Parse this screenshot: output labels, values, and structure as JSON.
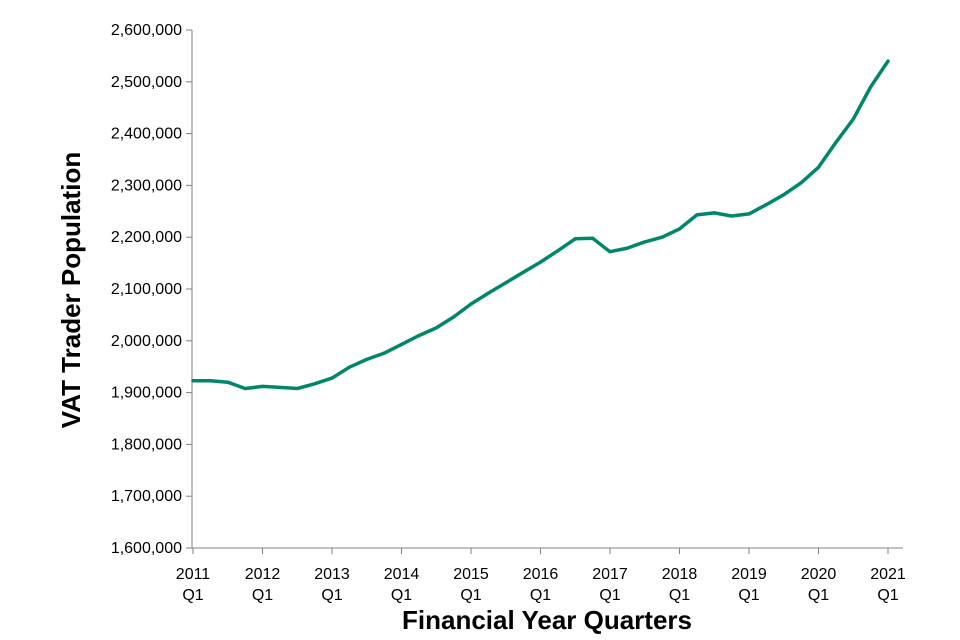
{
  "chart_data": {
    "type": "line",
    "title": "",
    "xlabel": "Financial Year Quarters",
    "ylabel": "VAT Trader Population",
    "ylim": [
      1600000,
      2600000
    ],
    "y_ticks": [
      1600000,
      1700000,
      1800000,
      1900000,
      2000000,
      2100000,
      2200000,
      2300000,
      2400000,
      2500000,
      2600000
    ],
    "y_tick_labels": [
      "1,600,000",
      "1,700,000",
      "1,800,000",
      "1,900,000",
      "2,000,000",
      "2,100,000",
      "2,200,000",
      "2,300,000",
      "2,400,000",
      "2,500,000",
      "2,600,000"
    ],
    "x_tick_labels": [
      {
        "year": "2011",
        "quarter": "Q1"
      },
      {
        "year": "2012",
        "quarter": "Q1"
      },
      {
        "year": "2013",
        "quarter": "Q1"
      },
      {
        "year": "2014",
        "quarter": "Q1"
      },
      {
        "year": "2015",
        "quarter": "Q1"
      },
      {
        "year": "2016",
        "quarter": "Q1"
      },
      {
        "year": "2017",
        "quarter": "Q1"
      },
      {
        "year": "2018",
        "quarter": "Q1"
      },
      {
        "year": "2019",
        "quarter": "Q1"
      },
      {
        "year": "2020",
        "quarter": "Q1"
      },
      {
        "year": "2021",
        "quarter": "Q1"
      }
    ],
    "grid": false,
    "legend": "none",
    "line_color": "#00876A",
    "series": [
      {
        "x": [
          "2011 Q1",
          "2011 Q2",
          "2011 Q3",
          "2011 Q4",
          "2012 Q1",
          "2012 Q2",
          "2012 Q3",
          "2012 Q4",
          "2013 Q1",
          "2013 Q2",
          "2013 Q3",
          "2013 Q4",
          "2014 Q1",
          "2014 Q2",
          "2014 Q3",
          "2014 Q4",
          "2015 Q1",
          "2015 Q2",
          "2015 Q3",
          "2015 Q4",
          "2016 Q1",
          "2016 Q2",
          "2016 Q3",
          "2016 Q4",
          "2017 Q1",
          "2017 Q2",
          "2017 Q3",
          "2017 Q4",
          "2018 Q1",
          "2018 Q2",
          "2018 Q3",
          "2018 Q4",
          "2019 Q1",
          "2019 Q2",
          "2019 Q3",
          "2019 Q4",
          "2020 Q1",
          "2020 Q2",
          "2020 Q3",
          "2020 Q4",
          "2021 Q1"
        ],
        "values": [
          1923000,
          1923000,
          1920000,
          1908000,
          1912000,
          1910000,
          1908000,
          1917000,
          1928000,
          1949000,
          1964000,
          1976000,
          1993000,
          2010000,
          2025000,
          2046000,
          2071000,
          2092000,
          2112000,
          2132000,
          2152000,
          2174000,
          2197000,
          2198000,
          2172000,
          2179000,
          2191000,
          2200000,
          2216000,
          2243000,
          2247000,
          2241000,
          2245000,
          2263000,
          2282000,
          2305000,
          2335000,
          2383000,
          2428000,
          2490000,
          2540000
        ]
      }
    ]
  }
}
